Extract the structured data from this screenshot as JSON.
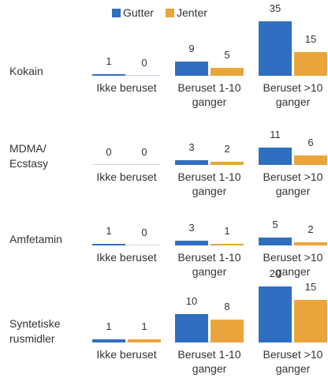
{
  "chart_data": [
    {
      "type": "bar",
      "title": "Kokain",
      "categories": [
        "Ikke beruset",
        "Beruset 1-10 ganger",
        "Beruset >10 ganger"
      ],
      "series": [
        {
          "name": "Gutter",
          "color": "#2f6fbf",
          "values": [
            1,
            9,
            35
          ]
        },
        {
          "name": "Jenter",
          "color": "#e9a53b",
          "values": [
            0,
            5,
            15
          ]
        }
      ],
      "ylim": [
        0,
        38
      ],
      "legend": "top"
    },
    {
      "type": "bar",
      "title": "MDMA/ Ecstasy",
      "categories": [
        "Ikke beruset",
        "Beruset 1-10 ganger",
        "Beruset >10 ganger"
      ],
      "series": [
        {
          "name": "Gutter",
          "color": "#2f6fbf",
          "values": [
            0,
            3,
            11
          ]
        },
        {
          "name": "Jenter",
          "color": "#e9a53b",
          "values": [
            0,
            2,
            6
          ]
        }
      ],
      "ylim": [
        0,
        38
      ]
    },
    {
      "type": "bar",
      "title": "Amfetamin",
      "categories": [
        "Ikke beruset",
        "Beruset 1-10 ganger",
        "Beruset >10 ganger"
      ],
      "series": [
        {
          "name": "Gutter",
          "color": "#2f6fbf",
          "values": [
            1,
            3,
            5
          ]
        },
        {
          "name": "Jenter",
          "color": "#e9a53b",
          "values": [
            0,
            1,
            2
          ]
        }
      ],
      "ylim": [
        0,
        38
      ]
    },
    {
      "type": "bar",
      "title": "Syntetiske rusmidler",
      "categories": [
        "Ikke beruset",
        "Beruset 1-10 ganger",
        "Beruset >10 ganger"
      ],
      "series": [
        {
          "name": "Gutter",
          "color": "#2f6fbf",
          "values": [
            1,
            10,
            20
          ]
        },
        {
          "name": "Jenter",
          "color": "#e9a53b",
          "values": [
            1,
            8,
            15
          ]
        }
      ],
      "ylim": [
        0,
        21
      ]
    }
  ]
}
